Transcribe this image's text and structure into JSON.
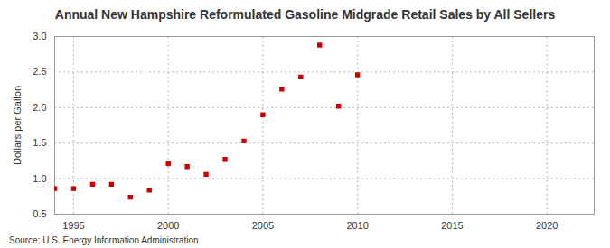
{
  "chart_data": {
    "type": "scatter",
    "title": "Annual New Hampshire Reformulated Gasoline Midgrade Retail Sales by All Sellers",
    "y_label": "Dollars per Gallon",
    "caption": "Source: U.S. Energy Information Administration",
    "x": [
      1994,
      1995,
      1996,
      1997,
      1998,
      1999,
      2000,
      2001,
      2002,
      2003,
      2004,
      2005,
      2006,
      2007,
      2008,
      2009,
      2010
    ],
    "values": [
      0.86,
      0.86,
      0.92,
      0.92,
      0.74,
      0.84,
      1.21,
      1.17,
      1.06,
      1.27,
      1.53,
      1.9,
      2.26,
      2.43,
      2.88,
      2.02,
      2.46
    ],
    "color": "#cc0000",
    "marker": "square",
    "xlim": [
      1994,
      2022.5
    ],
    "xticks": [
      1995,
      2000,
      2005,
      2010,
      2015,
      2020
    ],
    "ylim": [
      0.5,
      3.0
    ],
    "yticks": [
      0.5,
      {
        "value": 1.0,
        "label": "1.0"
      },
      1.5,
      {
        "value": 2.0,
        "label": "2.0"
      },
      2.5,
      {
        "value": 3.0,
        "label": "3.0"
      }
    ],
    "grid": true
  }
}
